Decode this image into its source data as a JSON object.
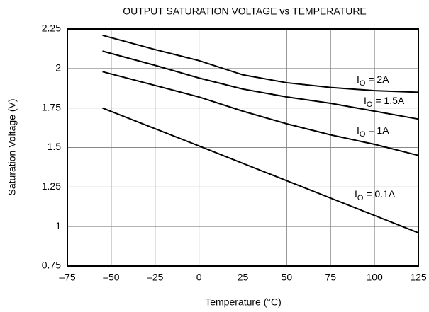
{
  "chart_data": {
    "type": "line",
    "title": "OUTPUT SATURATION VOLTAGE vs TEMPERATURE",
    "x_label": "Temperature (°C)",
    "y_label": "Saturation Voltage (V)",
    "xlim": [
      -75,
      125
    ],
    "xticks": [
      {
        "value": -75,
        "label": "–75"
      },
      {
        "value": -50,
        "label": "–50"
      },
      {
        "value": -25,
        "label": "–25"
      },
      0,
      25,
      50,
      75,
      100,
      125
    ],
    "ylim": [
      0.75,
      2.25
    ],
    "yticks": [
      0.75,
      1,
      1.25,
      1.5,
      1.75,
      2,
      2.25
    ],
    "grid": true,
    "series": [
      {
        "name": "IO = 2A",
        "color": "#000000",
        "x": [
          -55,
          -25,
          0,
          25,
          50,
          75,
          100,
          125
        ],
        "values": [
          2.21,
          2.12,
          2.05,
          1.96,
          1.91,
          1.88,
          1.86,
          1.85
        ]
      },
      {
        "name": "IO = 1.5A",
        "color": "#000000",
        "x": [
          -55,
          -25,
          0,
          25,
          50,
          75,
          100,
          125
        ],
        "values": [
          2.11,
          2.02,
          1.94,
          1.87,
          1.82,
          1.78,
          1.73,
          1.68
        ]
      },
      {
        "name": "IO = 1A",
        "color": "#000000",
        "x": [
          -55,
          0,
          25,
          50,
          75,
          100,
          125
        ],
        "values": [
          1.98,
          1.82,
          1.73,
          1.65,
          1.58,
          1.52,
          1.45
        ]
      },
      {
        "name": "IO = 0.1A",
        "color": "#000000",
        "x": [
          -55,
          0,
          50,
          125
        ],
        "values": [
          1.75,
          1.51,
          1.29,
          0.96
        ]
      }
    ]
  }
}
